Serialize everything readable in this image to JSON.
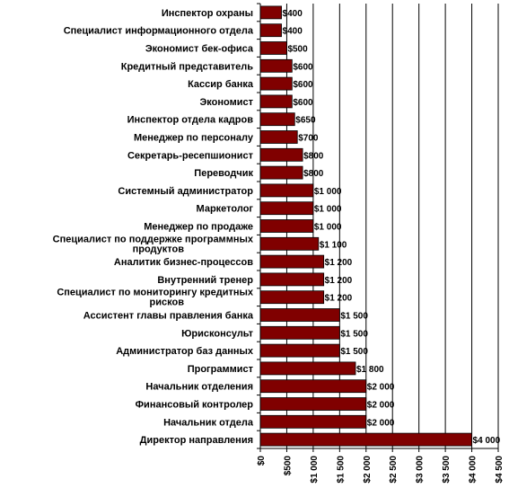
{
  "chart_data": {
    "type": "bar",
    "orientation": "horizontal",
    "categories": [
      "Инспектор охраны",
      "Специалист информационного отдела",
      "Экономист бек-офиса",
      "Кредитный представитель",
      "Кассир банка",
      "Экономист",
      "Инспектор отдела кадров",
      "Менеджер по персоналу",
      "Секретарь-ресепшионист",
      "Переводчик",
      "Системный администратор",
      "Маркетолог",
      "Менеджер по продаже",
      "Специалист по поддержке программных продуктов",
      "Аналитик бизнес-процессов",
      "Внутренний тренер",
      "Специалист по мониторингу кредитных рисков",
      "Ассистент главы правления банка",
      "Юрисконсульт",
      "Администратор баз данных",
      "Программист",
      "Начальник отделения",
      "Финансовый контролер",
      "Начальник отдела",
      "Директор направления"
    ],
    "values": [
      400,
      400,
      500,
      600,
      600,
      600,
      650,
      700,
      800,
      800,
      1000,
      1000,
      1000,
      1100,
      1200,
      1200,
      1200,
      1500,
      1500,
      1500,
      1800,
      2000,
      2000,
      2000,
      4000
    ],
    "value_labels": [
      "$400",
      "$400",
      "$500",
      "$600",
      "$600",
      "$600",
      "$650",
      "$700",
      "$800",
      "$800",
      "$1 000",
      "$1 000",
      "$1 000",
      "$1 100",
      "$1 200",
      "$1 200",
      "$1 200",
      "$1 500",
      "$1 500",
      "$1 500",
      "$1 800",
      "$2 000",
      "$2 000",
      "$2 000",
      "$4 000"
    ],
    "xlim": [
      0,
      4500
    ],
    "xticks": [
      0,
      500,
      1000,
      1500,
      2000,
      2500,
      3000,
      3500,
      4000,
      4500
    ],
    "xtick_labels": [
      "$0",
      "$500",
      "$1 000",
      "$1 500",
      "$2 000",
      "$2 500",
      "$3 000",
      "$3 500",
      "$4 000",
      "$4 500"
    ],
    "grid": "vertical",
    "legend": "none",
    "bar_color": "#800000",
    "title": "",
    "xlabel": "",
    "ylabel": ""
  }
}
